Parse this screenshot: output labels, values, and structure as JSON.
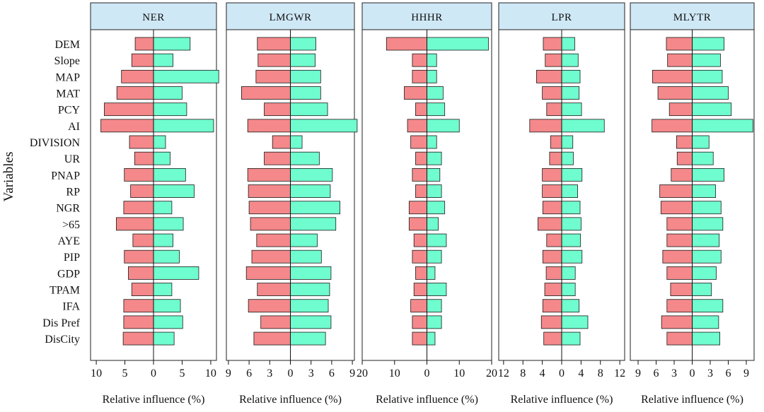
{
  "chart_data": {
    "type": "bar",
    "ylabel": "Variables",
    "categories": [
      "DEM",
      "Slope",
      "MAP",
      "MAT",
      "PCY",
      "AI",
      "DIVISION",
      "UR",
      "PNAP",
      "RP",
      "NGR",
      ">65",
      "AYE",
      "PIP",
      "GDP",
      "TPAM",
      "IFA",
      "Dis Pref",
      "DisCity"
    ],
    "colors": {
      "left": "#f4888a",
      "right": "#6ffcce",
      "header": "#cfe8f6",
      "panel_border": "#222222"
    },
    "panels": [
      {
        "title": "NER",
        "xlabel": "Relative influence (%)",
        "xlim": [
          -11,
          11
        ],
        "ticks": [
          -10,
          -5,
          0,
          5,
          10
        ],
        "tick_labels": [
          "10",
          "5",
          "0",
          "5",
          "10"
        ],
        "left": [
          3.2,
          3.8,
          5.6,
          6.4,
          8.6,
          9.2,
          4.2,
          3.3,
          5.1,
          4.0,
          5.2,
          6.5,
          3.6,
          5.1,
          4.4,
          3.8,
          5.2,
          5.2,
          5.3
        ],
        "right": [
          6.4,
          3.4,
          11.4,
          5.0,
          5.8,
          10.5,
          2.1,
          2.9,
          5.6,
          7.1,
          3.2,
          5.2,
          3.4,
          4.5,
          7.9,
          3.2,
          4.7,
          5.1,
          3.6
        ]
      },
      {
        "title": "LMGWR",
        "xlabel": "Relative influence (%)",
        "xlim": [
          -9.3,
          9.3
        ],
        "ticks": [
          -9,
          -6,
          -3,
          0,
          3,
          6,
          9
        ],
        "tick_labels": [
          "9",
          "6",
          "3",
          "0",
          "3",
          "6",
          "9"
        ],
        "left": [
          4.8,
          4.7,
          5.0,
          7.1,
          3.8,
          6.2,
          2.6,
          3.8,
          6.2,
          6.1,
          6.0,
          5.8,
          4.9,
          5.6,
          6.4,
          4.8,
          6.1,
          4.3,
          5.3
        ],
        "right": [
          3.7,
          3.6,
          4.4,
          4.4,
          5.4,
          9.7,
          1.7,
          4.2,
          6.1,
          5.8,
          7.2,
          6.6,
          3.9,
          4.5,
          5.9,
          5.7,
          5.5,
          5.9,
          5.1
        ]
      },
      {
        "title": "HHHR",
        "xlabel": "Relative influence (%)",
        "xlim": [
          -20,
          20
        ],
        "ticks": [
          -20,
          -10,
          0,
          10,
          20
        ],
        "tick_labels": [
          "20",
          "10",
          "0",
          "10",
          "20"
        ],
        "left": [
          12.5,
          4.5,
          4.5,
          7.0,
          3.5,
          6.0,
          5.0,
          3.5,
          4.5,
          3.5,
          5.5,
          5.5,
          4.0,
          4.5,
          3.5,
          4.0,
          5.0,
          4.5,
          4.5
        ],
        "right": [
          19.0,
          3.0,
          3.0,
          5.0,
          5.5,
          10.0,
          3.0,
          4.5,
          4.0,
          4.5,
          5.5,
          3.5,
          6.0,
          4.5,
          2.5,
          6.0,
          4.5,
          4.5,
          2.5
        ]
      },
      {
        "title": "LPR",
        "xlabel": "Relative influence (%)",
        "xlim": [
          -13,
          13
        ],
        "ticks": [
          -12,
          -8,
          -4,
          0,
          4,
          8,
          12
        ],
        "tick_labels": [
          "12",
          "8",
          "4",
          "0",
          "4",
          "8",
          "12"
        ],
        "left": [
          3.8,
          3.4,
          5.2,
          4.0,
          3.1,
          6.6,
          2.3,
          2.5,
          4.0,
          4.0,
          3.9,
          4.9,
          3.1,
          3.9,
          3.2,
          3.5,
          3.9,
          4.2,
          3.7
        ],
        "right": [
          2.7,
          3.4,
          3.8,
          3.6,
          4.1,
          8.8,
          2.3,
          2.4,
          4.2,
          3.3,
          3.8,
          4.0,
          3.9,
          4.2,
          2.8,
          2.8,
          3.6,
          5.4,
          3.8
        ]
      },
      {
        "title": "MLYTR",
        "xlabel": "Relative influence (%)",
        "xlim": [
          -10.3,
          10.3
        ],
        "ticks": [
          -9,
          -6,
          -3,
          0,
          3,
          6,
          9
        ],
        "tick_labels": [
          "9",
          "6",
          "3",
          "0",
          "3",
          "6",
          "9"
        ],
        "left": [
          4.3,
          4.1,
          6.6,
          5.7,
          3.8,
          6.7,
          2.6,
          2.5,
          3.5,
          5.4,
          5.2,
          4.2,
          4.2,
          4.9,
          4.2,
          3.6,
          4.2,
          5.1,
          4.2
        ],
        "right": [
          5.3,
          4.7,
          5.0,
          6.0,
          6.5,
          10.1,
          2.8,
          3.5,
          5.3,
          3.9,
          4.8,
          5.1,
          4.5,
          4.8,
          4.0,
          3.2,
          5.1,
          4.4,
          4.6
        ]
      }
    ]
  }
}
